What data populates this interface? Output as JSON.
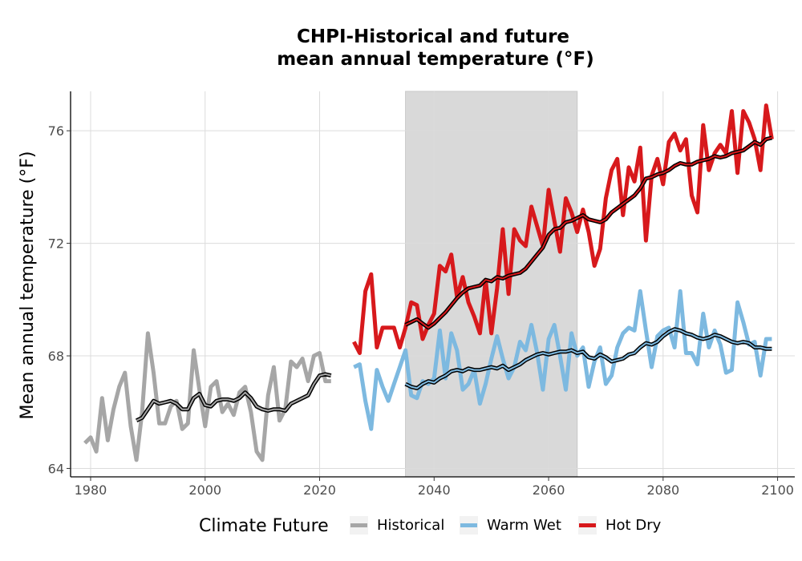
{
  "chart_data": {
    "type": "line",
    "title_line1": "CHPI-Historical and future",
    "title_line2": "mean annual temperature (°F)",
    "xlabel": "",
    "ylabel": "Mean annual temperature (°F)",
    "xlim": [
      1976.5,
      2103
    ],
    "ylim": [
      63.7,
      77.4
    ],
    "x_ticks": [
      1980,
      2000,
      2020,
      2040,
      2060,
      2080,
      2100
    ],
    "y_ticks": [
      64,
      68,
      72,
      76
    ],
    "x_tick_labels": [
      "1980",
      "2000",
      "2020",
      "2040",
      "2060",
      "2080",
      "2100"
    ],
    "y_tick_labels": [
      "64",
      "68",
      "72",
      "76"
    ],
    "grid": true,
    "shaded_period": [
      2035,
      2065
    ],
    "shaded_color": "#d9d9d9",
    "legend": {
      "title": "Climate Future",
      "position": "bottom",
      "entries": [
        {
          "label": "Historical",
          "color": "#a6a6a6"
        },
        {
          "label": "Warm Wet",
          "color": "#7db9e0"
        },
        {
          "label": "Hot Dry",
          "color": "#d7191c"
        }
      ]
    },
    "series": [
      {
        "name": "Historical",
        "color": "#a6a6a6",
        "x": [
          1979,
          1980,
          1981,
          1982,
          1983,
          1984,
          1985,
          1986,
          1987,
          1988,
          1989,
          1990,
          1991,
          1992,
          1993,
          1994,
          1995,
          1996,
          1997,
          1998,
          1999,
          2000,
          2001,
          2002,
          2003,
          2004,
          2005,
          2006,
          2007,
          2008,
          2009,
          2010,
          2011,
          2012,
          2013,
          2014,
          2015,
          2016,
          2017,
          2018,
          2019,
          2020,
          2021,
          2022
        ],
        "values": [
          64.9,
          65.1,
          64.6,
          66.5,
          65.0,
          66.1,
          66.9,
          67.4,
          65.5,
          64.3,
          66.0,
          68.8,
          67.4,
          65.6,
          65.6,
          66.2,
          66.4,
          65.4,
          65.6,
          68.2,
          66.8,
          65.5,
          66.9,
          67.1,
          66.0,
          66.3,
          65.9,
          66.7,
          66.9,
          66.0,
          64.6,
          64.3,
          66.6,
          67.6,
          65.7,
          66.1,
          67.8,
          67.6,
          67.9,
          67.1,
          68.0,
          68.1,
          67.1,
          67.1
        ]
      },
      {
        "name": "Warm Wet",
        "color": "#7db9e0",
        "x": [
          2026,
          2027,
          2028,
          2029,
          2030,
          2031,
          2032,
          2033,
          2034,
          2035,
          2036,
          2037,
          2038,
          2039,
          2040,
          2041,
          2042,
          2043,
          2044,
          2045,
          2046,
          2047,
          2048,
          2049,
          2050,
          2051,
          2052,
          2053,
          2054,
          2055,
          2056,
          2057,
          2058,
          2059,
          2060,
          2061,
          2062,
          2063,
          2064,
          2065,
          2066,
          2067,
          2068,
          2069,
          2070,
          2071,
          2072,
          2073,
          2074,
          2075,
          2076,
          2077,
          2078,
          2079,
          2080,
          2081,
          2082,
          2083,
          2084,
          2085,
          2086,
          2087,
          2088,
          2089,
          2090,
          2091,
          2092,
          2093,
          2094,
          2095,
          2096,
          2097,
          2098,
          2099
        ],
        "values": [
          67.6,
          67.7,
          66.4,
          65.4,
          67.5,
          66.9,
          66.4,
          67.0,
          67.6,
          68.2,
          66.6,
          66.5,
          67.1,
          67.0,
          67.2,
          68.9,
          67.2,
          68.8,
          68.2,
          66.8,
          67.0,
          67.5,
          66.3,
          67.0,
          67.9,
          68.7,
          67.9,
          67.2,
          67.6,
          68.5,
          68.2,
          69.1,
          68.1,
          66.8,
          68.6,
          69.1,
          68.0,
          66.8,
          68.8,
          68.0,
          68.3,
          66.9,
          67.8,
          68.3,
          67.0,
          67.3,
          68.3,
          68.8,
          69.0,
          68.9,
          70.3,
          68.9,
          67.6,
          68.7,
          68.9,
          69.0,
          68.3,
          70.3,
          68.1,
          68.1,
          67.7,
          69.5,
          68.3,
          68.9,
          68.4,
          67.4,
          67.5,
          69.9,
          69.2,
          68.4,
          68.5,
          67.3,
          68.6,
          68.6
        ]
      },
      {
        "name": "Hot Dry",
        "color": "#d7191c",
        "x": [
          2026,
          2027,
          2028,
          2029,
          2030,
          2031,
          2032,
          2033,
          2034,
          2035,
          2036,
          2037,
          2038,
          2039,
          2040,
          2041,
          2042,
          2043,
          2044,
          2045,
          2046,
          2047,
          2048,
          2049,
          2050,
          2051,
          2052,
          2053,
          2054,
          2055,
          2056,
          2057,
          2058,
          2059,
          2060,
          2061,
          2062,
          2063,
          2064,
          2065,
          2066,
          2067,
          2068,
          2069,
          2070,
          2071,
          2072,
          2073,
          2074,
          2075,
          2076,
          2077,
          2078,
          2079,
          2080,
          2081,
          2082,
          2083,
          2084,
          2085,
          2086,
          2087,
          2088,
          2089,
          2090,
          2091,
          2092,
          2093,
          2094,
          2095,
          2096,
          2097,
          2098,
          2099
        ],
        "values": [
          68.5,
          68.1,
          70.3,
          70.9,
          68.3,
          69.0,
          69.0,
          69.0,
          68.3,
          69.0,
          69.9,
          69.8,
          68.6,
          69.1,
          69.5,
          71.2,
          71.0,
          71.6,
          70.1,
          70.8,
          69.9,
          69.4,
          68.8,
          70.7,
          68.8,
          70.4,
          72.5,
          70.2,
          72.5,
          72.1,
          71.9,
          73.3,
          72.6,
          71.9,
          73.9,
          72.8,
          71.7,
          73.6,
          73.1,
          72.4,
          73.2,
          72.4,
          71.2,
          71.8,
          73.6,
          74.6,
          75.0,
          73.0,
          74.7,
          74.2,
          75.4,
          72.1,
          74.4,
          75.0,
          74.1,
          75.6,
          75.9,
          75.3,
          75.7,
          73.7,
          73.1,
          76.2,
          74.6,
          75.2,
          75.5,
          75.2,
          76.7,
          74.5,
          76.7,
          76.3,
          75.7,
          74.6,
          76.9,
          75.7
        ]
      }
    ],
    "rolling_means": [
      {
        "base_series": "Historical",
        "x": [
          1988,
          1989,
          1990,
          1991,
          1992,
          1993,
          1994,
          1995,
          1996,
          1997,
          1998,
          1999,
          2000,
          2001,
          2002,
          2003,
          2004,
          2005,
          2006,
          2007,
          2008,
          2009,
          2010,
          2011,
          2012,
          2013,
          2014,
          2015,
          2016,
          2017,
          2018,
          2019,
          2020,
          2021,
          2022
        ],
        "values": [
          65.7,
          65.8,
          66.1,
          66.4,
          66.3,
          66.35,
          66.4,
          66.3,
          66.1,
          66.1,
          66.5,
          66.65,
          66.25,
          66.2,
          66.4,
          66.45,
          66.45,
          66.4,
          66.5,
          66.7,
          66.5,
          66.2,
          66.1,
          66.05,
          66.1,
          66.1,
          66.05,
          66.3,
          66.4,
          66.5,
          66.6,
          67.0,
          67.3,
          67.35,
          67.3
        ]
      },
      {
        "base_series": "Warm Wet",
        "x": [
          2035,
          2036,
          2037,
          2038,
          2039,
          2040,
          2041,
          2042,
          2043,
          2044,
          2045,
          2046,
          2047,
          2048,
          2049,
          2050,
          2051,
          2052,
          2053,
          2054,
          2055,
          2056,
          2057,
          2058,
          2059,
          2060,
          2061,
          2062,
          2063,
          2064,
          2065,
          2066,
          2067,
          2068,
          2069,
          2070,
          2071,
          2072,
          2073,
          2074,
          2075,
          2076,
          2077,
          2078,
          2079,
          2080,
          2081,
          2082,
          2083,
          2084,
          2085,
          2086,
          2087,
          2088,
          2089,
          2090,
          2091,
          2092,
          2093,
          2094,
          2095,
          2096,
          2097,
          2098,
          2099
        ],
        "values": [
          67.0,
          66.9,
          66.85,
          67.0,
          67.1,
          67.05,
          67.2,
          67.3,
          67.45,
          67.5,
          67.45,
          67.55,
          67.5,
          67.5,
          67.55,
          67.6,
          67.55,
          67.65,
          67.5,
          67.6,
          67.7,
          67.85,
          67.95,
          68.05,
          68.1,
          68.05,
          68.1,
          68.15,
          68.15,
          68.2,
          68.1,
          68.15,
          67.95,
          67.9,
          68.05,
          67.95,
          67.8,
          67.85,
          67.9,
          68.05,
          68.1,
          68.3,
          68.45,
          68.4,
          68.5,
          68.7,
          68.85,
          68.95,
          68.9,
          68.8,
          68.75,
          68.65,
          68.6,
          68.65,
          68.75,
          68.7,
          68.6,
          68.5,
          68.45,
          68.5,
          68.45,
          68.3,
          68.3,
          68.25,
          68.25
        ]
      },
      {
        "base_series": "Hot Dry",
        "x": [
          2035,
          2036,
          2037,
          2038,
          2039,
          2040,
          2041,
          2042,
          2043,
          2044,
          2045,
          2046,
          2047,
          2048,
          2049,
          2050,
          2051,
          2052,
          2053,
          2054,
          2055,
          2056,
          2057,
          2058,
          2059,
          2060,
          2061,
          2062,
          2063,
          2064,
          2065,
          2066,
          2067,
          2068,
          2069,
          2070,
          2071,
          2072,
          2073,
          2074,
          2075,
          2076,
          2077,
          2078,
          2079,
          2080,
          2081,
          2082,
          2083,
          2084,
          2085,
          2086,
          2087,
          2088,
          2089,
          2090,
          2091,
          2092,
          2093,
          2094,
          2095,
          2096,
          2097,
          2098,
          2099
        ],
        "values": [
          69.1,
          69.2,
          69.3,
          69.15,
          69.0,
          69.15,
          69.35,
          69.55,
          69.8,
          70.05,
          70.25,
          70.4,
          70.45,
          70.5,
          70.7,
          70.65,
          70.8,
          70.75,
          70.85,
          70.9,
          70.95,
          71.1,
          71.35,
          71.6,
          71.85,
          72.3,
          72.5,
          72.55,
          72.75,
          72.8,
          72.9,
          73.0,
          72.85,
          72.8,
          72.75,
          72.85,
          73.1,
          73.25,
          73.4,
          73.55,
          73.7,
          73.95,
          74.3,
          74.35,
          74.45,
          74.5,
          74.6,
          74.75,
          74.85,
          74.8,
          74.8,
          74.9,
          74.95,
          75.0,
          75.1,
          75.05,
          75.1,
          75.2,
          75.25,
          75.3,
          75.45,
          75.6,
          75.5,
          75.7,
          75.75
        ]
      }
    ]
  }
}
